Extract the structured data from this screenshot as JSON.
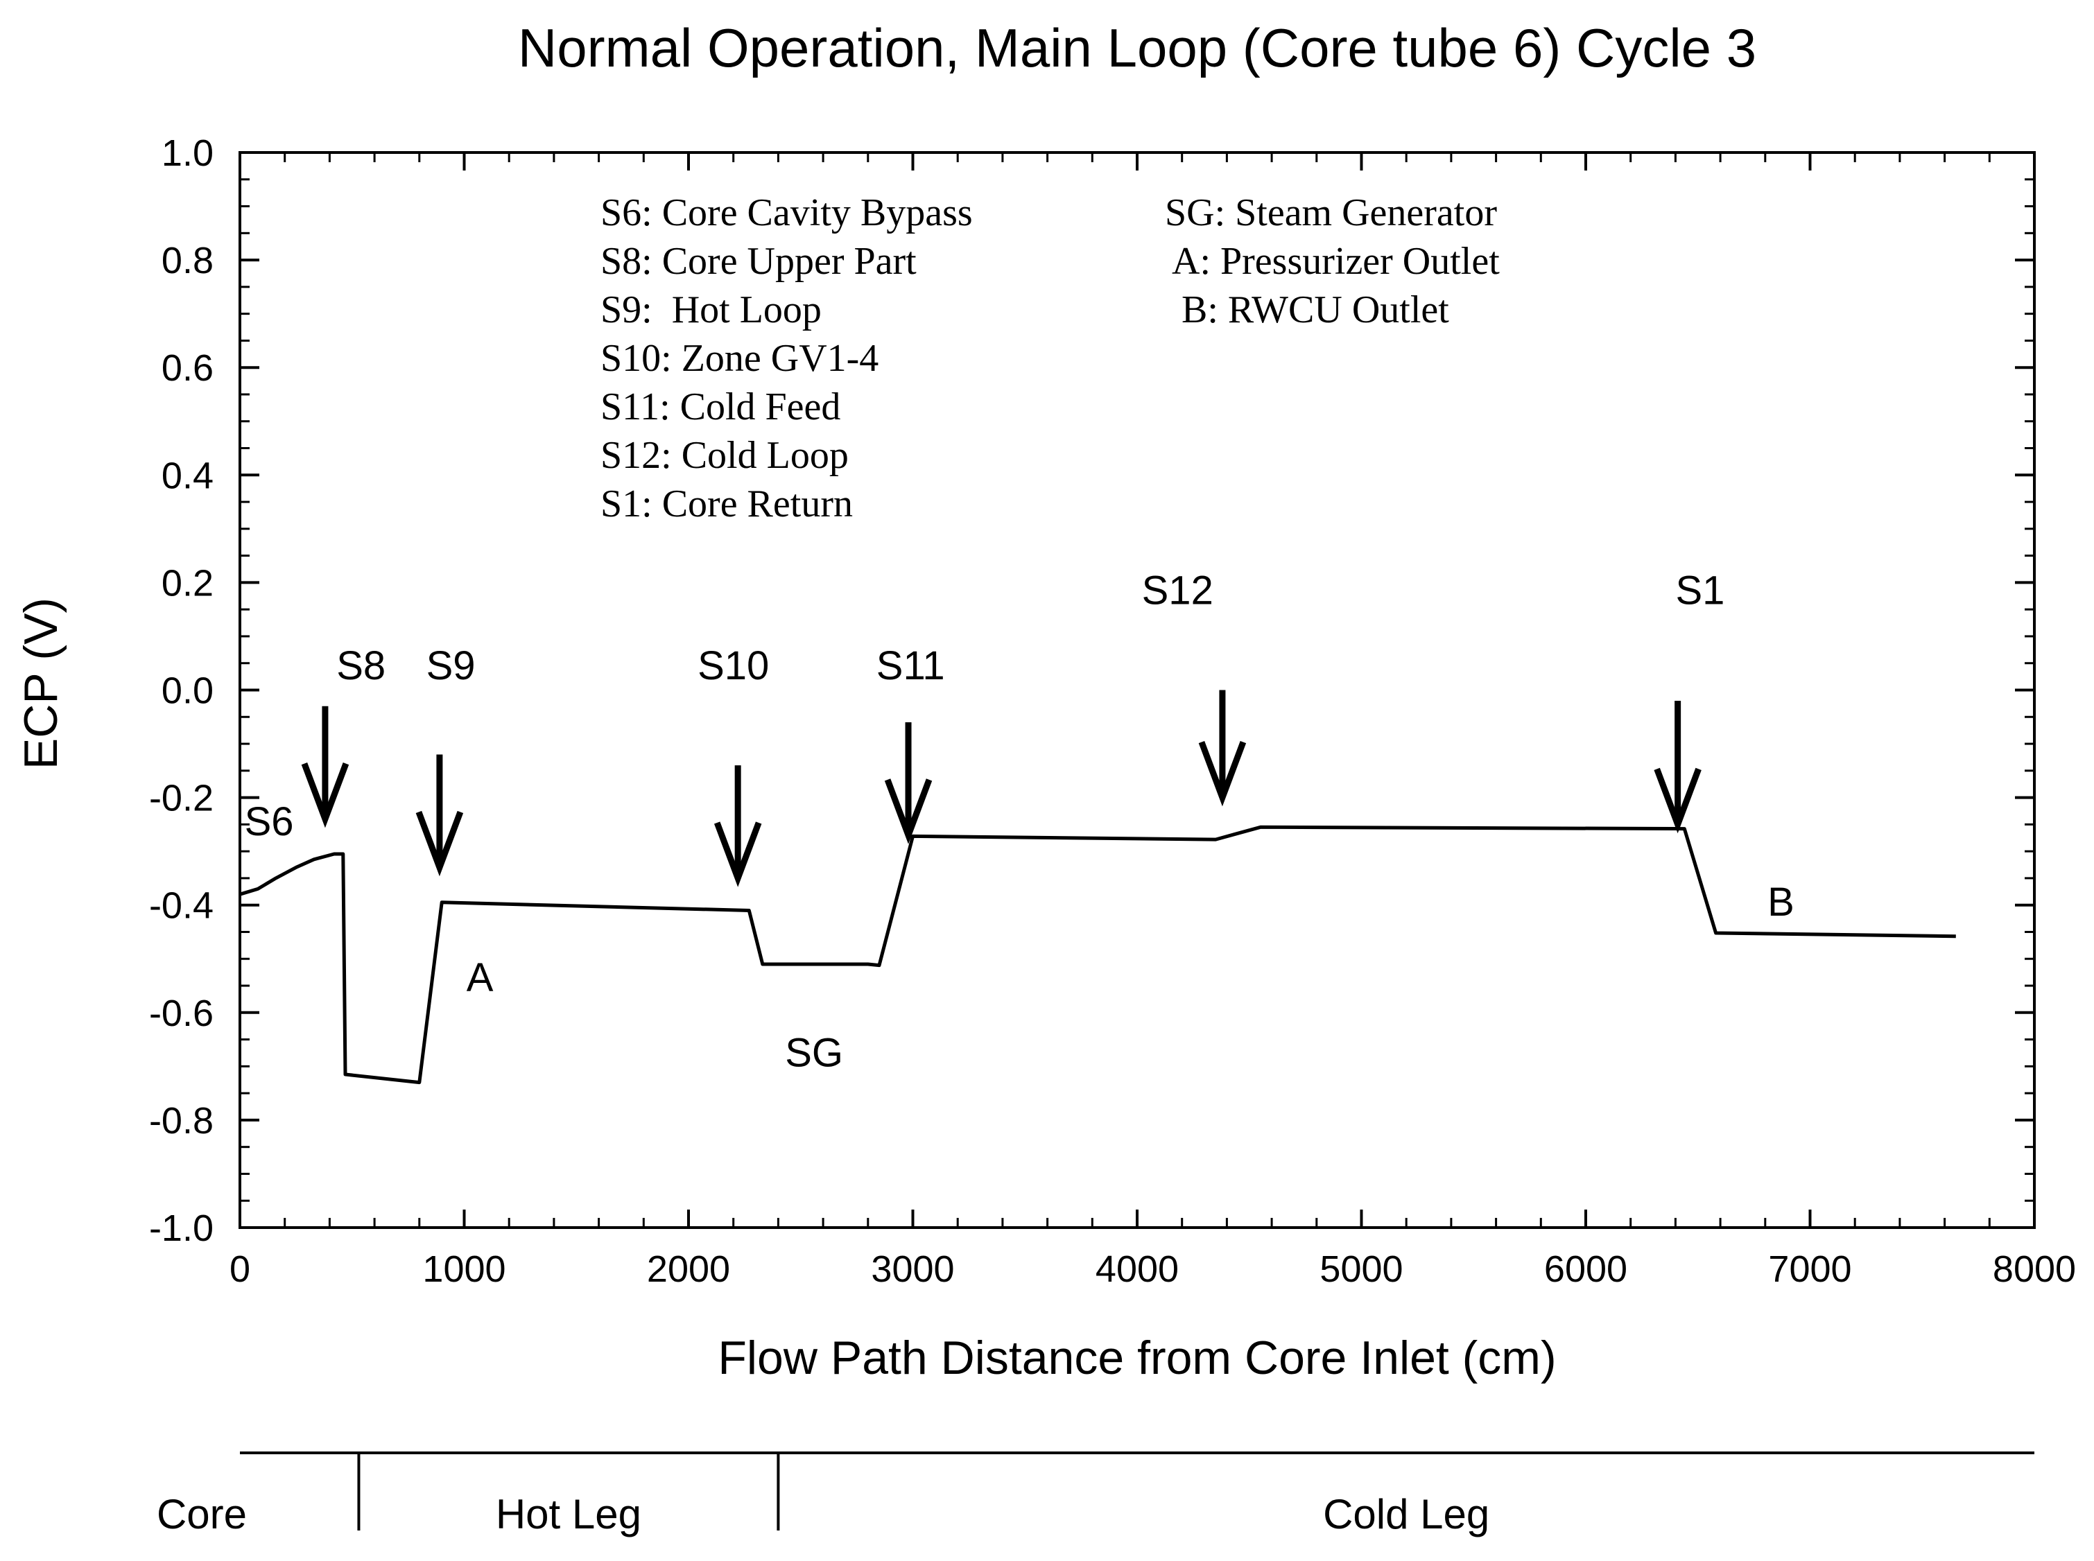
{
  "chart_data": {
    "type": "line",
    "title": "Normal Operation, Main Loop (Core tube 6) Cycle 3",
    "xlabel": "Flow Path Distance from Core Inlet (cm)",
    "ylabel": "ECP (V)",
    "xlim": [
      0,
      8000
    ],
    "ylim": [
      -1.0,
      1.0
    ],
    "x_ticks": [
      {
        "value": 0,
        "label": "0"
      },
      {
        "value": 1000,
        "label": "1000"
      },
      {
        "value": 2000,
        "label": "2000"
      },
      {
        "value": 3000,
        "label": "3000"
      },
      {
        "value": 4000,
        "label": "4000"
      },
      {
        "value": 5000,
        "label": "5000"
      },
      {
        "value": 6000,
        "label": "6000"
      },
      {
        "value": 7000,
        "label": "7000"
      },
      {
        "value": 8000,
        "label": "8000"
      }
    ],
    "y_ticks": [
      {
        "value": 1.0,
        "label": "1.0"
      },
      {
        "value": 0.8,
        "label": "0.8"
      },
      {
        "value": 0.6,
        "label": "0.6"
      },
      {
        "value": 0.4,
        "label": "0.4"
      },
      {
        "value": 0.2,
        "label": "0.2"
      },
      {
        "value": 0.0,
        "label": "0.0"
      },
      {
        "value": -0.2,
        "label": "-0.2"
      },
      {
        "value": -0.4,
        "label": "-0.4"
      },
      {
        "value": -0.6,
        "label": "-0.6"
      },
      {
        "value": -0.8,
        "label": "-0.8"
      },
      {
        "value": -1.0,
        "label": "-1.0"
      }
    ],
    "series": [
      {
        "name": "ECP",
        "x": [
          0,
          80,
          160,
          250,
          330,
          420,
          460,
          470,
          800,
          900,
          2270,
          2330,
          2800,
          2850,
          3000,
          4350,
          4550,
          6440,
          6580,
          7650
        ],
        "y": [
          -0.38,
          -0.37,
          -0.35,
          -0.33,
          -0.315,
          -0.305,
          -0.305,
          -0.715,
          -0.73,
          -0.395,
          -0.41,
          -0.51,
          -0.51,
          -0.512,
          -0.272,
          -0.278,
          -0.255,
          -0.258,
          -0.452,
          -0.458
        ]
      }
    ],
    "markers": [
      {
        "label": "S8",
        "x": 380,
        "tip_y": -0.24,
        "tail_y": -0.03,
        "label_x": 540,
        "label_y": 0.02
      },
      {
        "label": "S9",
        "x": 890,
        "tip_y": -0.33,
        "tail_y": -0.12,
        "label_x": 940,
        "label_y": 0.02
      },
      {
        "label": "S10",
        "x": 2220,
        "tip_y": -0.35,
        "tail_y": -0.14,
        "label_x": 2200,
        "label_y": 0.02
      },
      {
        "label": "S11",
        "x": 2980,
        "tip_y": -0.27,
        "tail_y": -0.06,
        "label_x": 2990,
        "label_y": 0.02
      },
      {
        "label": "S12",
        "x": 4380,
        "tip_y": -0.2,
        "tail_y": 0.0,
        "label_x": 4180,
        "label_y": 0.16
      },
      {
        "label": "S1",
        "x": 6410,
        "tip_y": -0.25,
        "tail_y": -0.02,
        "label_x": 6510,
        "label_y": 0.16
      }
    ],
    "annotations": [
      {
        "text": "S6",
        "x": 130,
        "y": -0.27
      },
      {
        "text": "A",
        "x": 1070,
        "y": -0.56
      },
      {
        "text": "SG",
        "x": 2560,
        "y": -0.7
      },
      {
        "text": "B",
        "x": 6870,
        "y": -0.42
      }
    ],
    "legend_left": [
      "S6: Core Cavity Bypass",
      "S8: Core Upper Part",
      "S9:  Hot Loop",
      "S10: Zone GV1-4",
      "S11: Cold Feed",
      "S12: Cold Loop",
      "S1: Core Return"
    ],
    "legend_right": [
      "SG: Steam Generator",
      "A: Pressurizer Outlet",
      " B: RWCU Outlet"
    ],
    "legend_placement": "top-center",
    "sections": [
      {
        "label": "Core",
        "start": 0,
        "end": 530
      },
      {
        "label": "Hot Leg",
        "start": 530,
        "end": 2400
      },
      {
        "label": "Cold Leg",
        "start": 2400,
        "end": 8000
      }
    ]
  }
}
